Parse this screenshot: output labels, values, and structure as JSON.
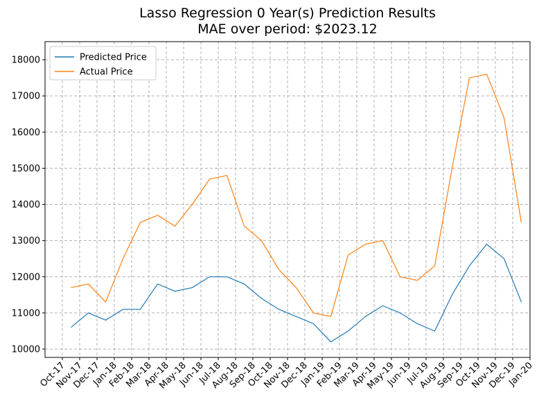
{
  "chart_data": {
    "type": "line",
    "title": "Lasso Regression 0 Year(s) Prediction Results",
    "subtitle": "MAE over period: $2023.12",
    "x": [
      "2017-10",
      "2017-11",
      "2017-12",
      "2018-01",
      "2018-02",
      "2018-03",
      "2018-04",
      "2018-05",
      "2018-06",
      "2018-07",
      "2018-08",
      "2018-09",
      "2018-10",
      "2018-11",
      "2018-12",
      "2019-01",
      "2019-02",
      "2019-03",
      "2019-04",
      "2019-05",
      "2019-06",
      "2019-07",
      "2019-08",
      "2019-09",
      "2019-10",
      "2019-11",
      "2019-12"
    ],
    "series": [
      {
        "name": "Predicted Price",
        "color": "#1f77b4",
        "values": [
          10600,
          11000,
          10800,
          11100,
          11100,
          11800,
          11600,
          11700,
          12000,
          12000,
          11800,
          11400,
          11100,
          10900,
          10700,
          10200,
          10500,
          10900,
          11200,
          11000,
          10700,
          10500,
          11500,
          12300,
          12900,
          12500,
          11300
        ]
      },
      {
        "name": "Actual Price",
        "color": "#ff7f0e",
        "values": [
          11700,
          11800,
          11300,
          12500,
          13500,
          13700,
          13400,
          14000,
          14700,
          14800,
          13400,
          13000,
          12200,
          11700,
          11000,
          10900,
          12600,
          12900,
          13000,
          12000,
          11900,
          12300,
          15000,
          17500,
          17600,
          16400,
          13500
        ]
      }
    ],
    "xlim": [
      "2017-09",
      "2020-01"
    ],
    "xticks": [
      {
        "value": "2017-10",
        "label": "Oct-17"
      },
      {
        "value": "2017-11",
        "label": "Nov-17"
      },
      {
        "value": "2017-12",
        "label": "Dec-17"
      },
      {
        "value": "2018-01",
        "label": "Jan-18"
      },
      {
        "value": "2018-02",
        "label": "Feb-18"
      },
      {
        "value": "2018-03",
        "label": "Mar-18"
      },
      {
        "value": "2018-04",
        "label": "Apr-18"
      },
      {
        "value": "2018-05",
        "label": "May-18"
      },
      {
        "value": "2018-06",
        "label": "Jun-18"
      },
      {
        "value": "2018-07",
        "label": "Jul-18"
      },
      {
        "value": "2018-08",
        "label": "Aug-18"
      },
      {
        "value": "2018-09",
        "label": "Sep-18"
      },
      {
        "value": "2018-10",
        "label": "Oct-18"
      },
      {
        "value": "2018-11",
        "label": "Nov-18"
      },
      {
        "value": "2018-12",
        "label": "Dec-18"
      },
      {
        "value": "2019-01",
        "label": "Jan-19"
      },
      {
        "value": "2019-02",
        "label": "Feb-19"
      },
      {
        "value": "2019-03",
        "label": "Mar-19"
      },
      {
        "value": "2019-04",
        "label": "Apr-19"
      },
      {
        "value": "2019-05",
        "label": "May-19"
      },
      {
        "value": "2019-06",
        "label": "Jun-19"
      },
      {
        "value": "2019-07",
        "label": "Jul-19"
      },
      {
        "value": "2019-08",
        "label": "Aug-19"
      },
      {
        "value": "2019-09",
        "label": "Sep-19"
      },
      {
        "value": "2019-10",
        "label": "Oct-19"
      },
      {
        "value": "2019-11",
        "label": "Nov-19"
      },
      {
        "value": "2019-12",
        "label": "Dec-19"
      },
      {
        "value": "2020-01",
        "label": "Jan-20"
      }
    ],
    "ylim": [
      9770,
      18500
    ],
    "yticks": [
      10000,
      11000,
      12000,
      13000,
      14000,
      15000,
      16000,
      17000,
      18000
    ],
    "grid": true,
    "legend": "upper-left"
  }
}
